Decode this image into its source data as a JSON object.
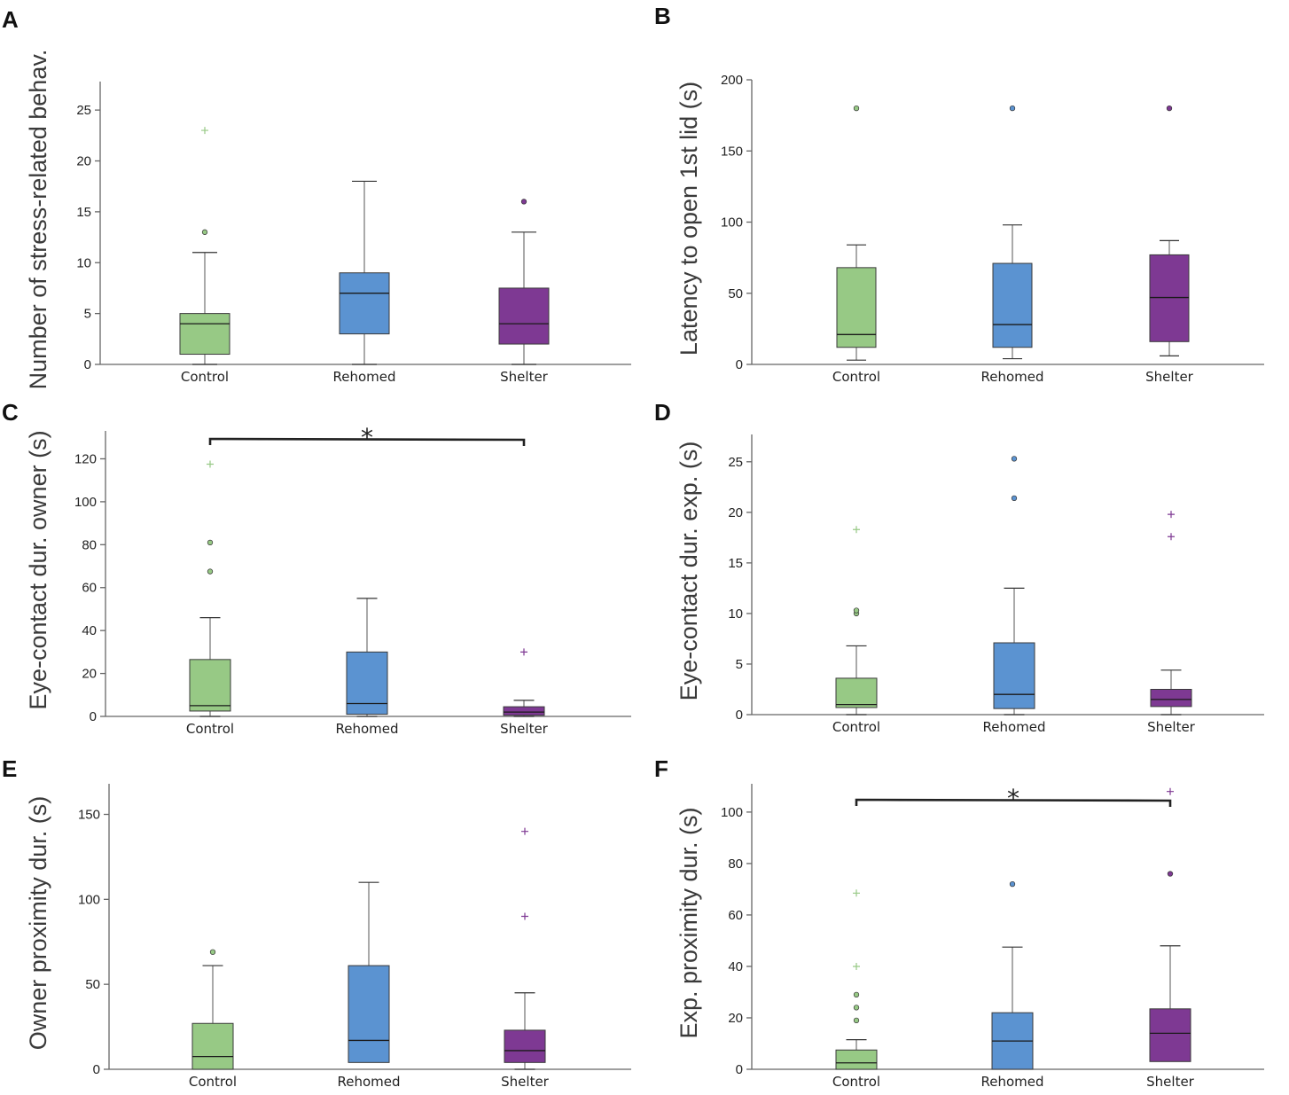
{
  "colors": {
    "control": "#97c985",
    "rehomed": "#5b93d1",
    "shelter": "#7e3993",
    "whisker": "#555555",
    "axis": "#666666"
  },
  "categories": [
    "Control",
    "Rehomed",
    "Shelter"
  ],
  "chart_data": [
    {
      "type": "boxplot",
      "panel": "A",
      "title": "",
      "xlabel": "",
      "ylabel": "Number of stress-related behav.",
      "ylim": [
        0,
        27.8
      ],
      "yticks": [
        0,
        5,
        10,
        15,
        20,
        25
      ],
      "categories": [
        "Control",
        "Rehomed",
        "Shelter"
      ],
      "series": [
        {
          "name": "Control",
          "color": "#97c985",
          "whisker_low": 0,
          "q1": 1,
          "median": 4,
          "q3": 5,
          "whisker_high": 11,
          "outliers": [
            13
          ],
          "extremes": [
            23
          ]
        },
        {
          "name": "Rehomed",
          "color": "#5b93d1",
          "whisker_low": 0,
          "q1": 3,
          "median": 7,
          "q3": 9,
          "whisker_high": 18,
          "outliers": [],
          "extremes": []
        },
        {
          "name": "Shelter",
          "color": "#7e3993",
          "whisker_low": 0,
          "q1": 2,
          "median": 4,
          "q3": 7.5,
          "whisker_high": 13,
          "outliers": [
            16
          ],
          "extremes": []
        }
      ],
      "significance": []
    },
    {
      "type": "boxplot",
      "panel": "B",
      "title": "",
      "xlabel": "",
      "ylabel": "Latency to open 1st lid (s)",
      "ylim": [
        0,
        200
      ],
      "yticks": [
        0,
        50,
        100,
        150,
        200
      ],
      "categories": [
        "Control",
        "Rehomed",
        "Shelter"
      ],
      "series": [
        {
          "name": "Control",
          "color": "#97c985",
          "whisker_low": 3,
          "q1": 12,
          "median": 21,
          "q3": 68,
          "whisker_high": 84,
          "outliers": [
            180
          ],
          "extremes": []
        },
        {
          "name": "Rehomed",
          "color": "#5b93d1",
          "whisker_low": 4,
          "q1": 12,
          "median": 28,
          "q3": 71,
          "whisker_high": 98,
          "outliers": [
            180
          ],
          "extremes": []
        },
        {
          "name": "Shelter",
          "color": "#7e3993",
          "whisker_low": 6,
          "q1": 16,
          "median": 47,
          "q3": 77,
          "whisker_high": 87,
          "outliers": [
            180
          ],
          "extremes": []
        }
      ],
      "significance": []
    },
    {
      "type": "boxplot",
      "panel": "C",
      "title": "",
      "xlabel": "",
      "ylabel": "Eye-contact dur. owner (s)",
      "ylim": [
        0,
        133
      ],
      "yticks": [
        0,
        20,
        40,
        60,
        80,
        100,
        120
      ],
      "categories": [
        "Control",
        "Rehomed",
        "Shelter"
      ],
      "series": [
        {
          "name": "Control",
          "color": "#97c985",
          "whisker_low": 0,
          "q1": 2.5,
          "median": 5,
          "q3": 26.5,
          "whisker_high": 46,
          "outliers": [
            67.5,
            81
          ],
          "extremes": [
            117.5
          ]
        },
        {
          "name": "Rehomed",
          "color": "#5b93d1",
          "whisker_low": 0,
          "q1": 1,
          "median": 6,
          "q3": 30,
          "whisker_high": 55,
          "outliers": [],
          "extremes": []
        },
        {
          "name": "Shelter",
          "color": "#7e3993",
          "whisker_low": 0,
          "q1": 0.5,
          "median": 2,
          "q3": 4.5,
          "whisker_high": 7.5,
          "outliers": [],
          "extremes": [
            30
          ]
        }
      ],
      "significance": [
        {
          "from": "Control",
          "to": "Shelter",
          "label": "*"
        }
      ]
    },
    {
      "type": "boxplot",
      "panel": "D",
      "title": "",
      "xlabel": "",
      "ylabel": "Eye-contact dur. exp. (s)",
      "ylim": [
        0,
        27.7
      ],
      "yticks": [
        0,
        5,
        10,
        15,
        20,
        25
      ],
      "categories": [
        "Control",
        "Rehomed",
        "Shelter"
      ],
      "series": [
        {
          "name": "Control",
          "color": "#97c985",
          "whisker_low": 0,
          "q1": 0.7,
          "median": 1,
          "q3": 3.6,
          "whisker_high": 6.8,
          "outliers": [
            10,
            10.3
          ],
          "extremes": [
            18.3
          ]
        },
        {
          "name": "Rehomed",
          "color": "#5b93d1",
          "whisker_low": 0,
          "q1": 0.6,
          "median": 2,
          "q3": 7.1,
          "whisker_high": 12.5,
          "outliers": [
            21.4,
            25.3
          ],
          "extremes": []
        },
        {
          "name": "Shelter",
          "color": "#7e3993",
          "whisker_low": 0,
          "q1": 0.8,
          "median": 1.5,
          "q3": 2.5,
          "whisker_high": 4.4,
          "outliers": [],
          "extremes": [
            17.6,
            19.8
          ]
        }
      ],
      "significance": []
    },
    {
      "type": "boxplot",
      "panel": "E",
      "title": "",
      "xlabel": "",
      "ylabel": "Owner proximity dur. (s)",
      "ylim": [
        0,
        168
      ],
      "yticks": [
        0,
        50,
        100,
        150
      ],
      "categories": [
        "Control",
        "Rehomed",
        "Shelter"
      ],
      "series": [
        {
          "name": "Control",
          "color": "#97c985",
          "whisker_low": 0,
          "q1": 0,
          "median": 7.5,
          "q3": 27,
          "whisker_high": 61,
          "outliers": [
            69
          ],
          "extremes": []
        },
        {
          "name": "Rehomed",
          "color": "#5b93d1",
          "whisker_low": 4,
          "q1": 4,
          "median": 17,
          "q3": 61,
          "whisker_high": 110,
          "outliers": [],
          "extremes": []
        },
        {
          "name": "Shelter",
          "color": "#7e3993",
          "whisker_low": 0,
          "q1": 4,
          "median": 11,
          "q3": 23,
          "whisker_high": 45,
          "outliers": [],
          "extremes": [
            90,
            140
          ]
        }
      ],
      "significance": []
    },
    {
      "type": "boxplot",
      "panel": "F",
      "title": "",
      "xlabel": "",
      "ylabel": "Exp. proximity dur. (s)",
      "ylim": [
        0,
        111
      ],
      "yticks": [
        0,
        20,
        40,
        60,
        80,
        100
      ],
      "categories": [
        "Control",
        "Rehomed",
        "Shelter"
      ],
      "series": [
        {
          "name": "Control",
          "color": "#97c985",
          "whisker_low": 0,
          "q1": 0,
          "median": 2.5,
          "q3": 7.5,
          "whisker_high": 11.5,
          "outliers": [
            19,
            24,
            29
          ],
          "extremes": [
            40,
            68.5
          ]
        },
        {
          "name": "Rehomed",
          "color": "#5b93d1",
          "whisker_low": 0,
          "q1": 0,
          "median": 11,
          "q3": 22,
          "whisker_high": 47.5,
          "outliers": [
            72
          ],
          "extremes": []
        },
        {
          "name": "Shelter",
          "color": "#7e3993",
          "whisker_low": 3,
          "q1": 3,
          "median": 14,
          "q3": 23.5,
          "whisker_high": 48,
          "outliers": [
            76
          ],
          "extremes": [
            108
          ]
        }
      ],
      "significance": [
        {
          "from": "Control",
          "to": "Shelter",
          "label": "*"
        }
      ]
    }
  ]
}
